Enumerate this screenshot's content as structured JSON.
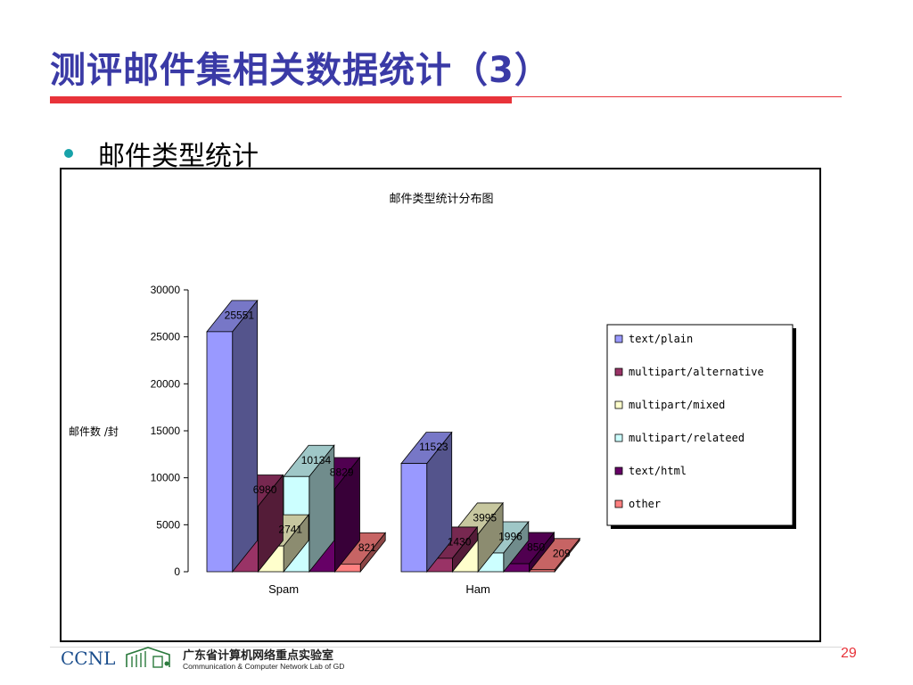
{
  "slide": {
    "title": "测评邮件集相关数据统计（3）",
    "bullet": "邮件类型统计",
    "page_number": "29"
  },
  "footer": {
    "logo_text": "CCNL",
    "lab_name_cn": "广东省计算机网络重点实验室",
    "lab_name_en": "Communication & Computer Network Lab of GD"
  },
  "chart_data": {
    "type": "bar",
    "title": "邮件类型统计分布图",
    "ylabel": "邮件数 /封",
    "xlabel": "",
    "categories": [
      "Spam",
      "Ham"
    ],
    "ylim": [
      0,
      30000
    ],
    "yticks": [
      "0",
      "5000",
      "10000",
      "15000",
      "20000",
      "25000",
      "30000"
    ],
    "legend_position": "right",
    "series": [
      {
        "name": "text/plain",
        "values": [
          25551,
          11523
        ],
        "labels": [
          "25551",
          "11523"
        ],
        "color": "#9999ff"
      },
      {
        "name": "multipart/alternative",
        "values": [
          6980,
          1430
        ],
        "labels": [
          "6980",
          "1430"
        ],
        "color": "#993366"
      },
      {
        "name": "multipart/mixed",
        "values": [
          2741,
          3995
        ],
        "labels": [
          "2741",
          "3995"
        ],
        "color": "#ffffcc"
      },
      {
        "name": "multipart/relateed",
        "values": [
          10134,
          1996
        ],
        "labels": [
          "10134",
          "1996"
        ],
        "color": "#ccffff"
      },
      {
        "name": "text/html",
        "values": [
          8829,
          850
        ],
        "labels": [
          "8829",
          "850"
        ],
        "color": "#660066"
      },
      {
        "name": "other",
        "values": [
          821,
          209
        ],
        "labels": [
          "821",
          "209"
        ],
        "color": "#ff8080"
      }
    ]
  }
}
